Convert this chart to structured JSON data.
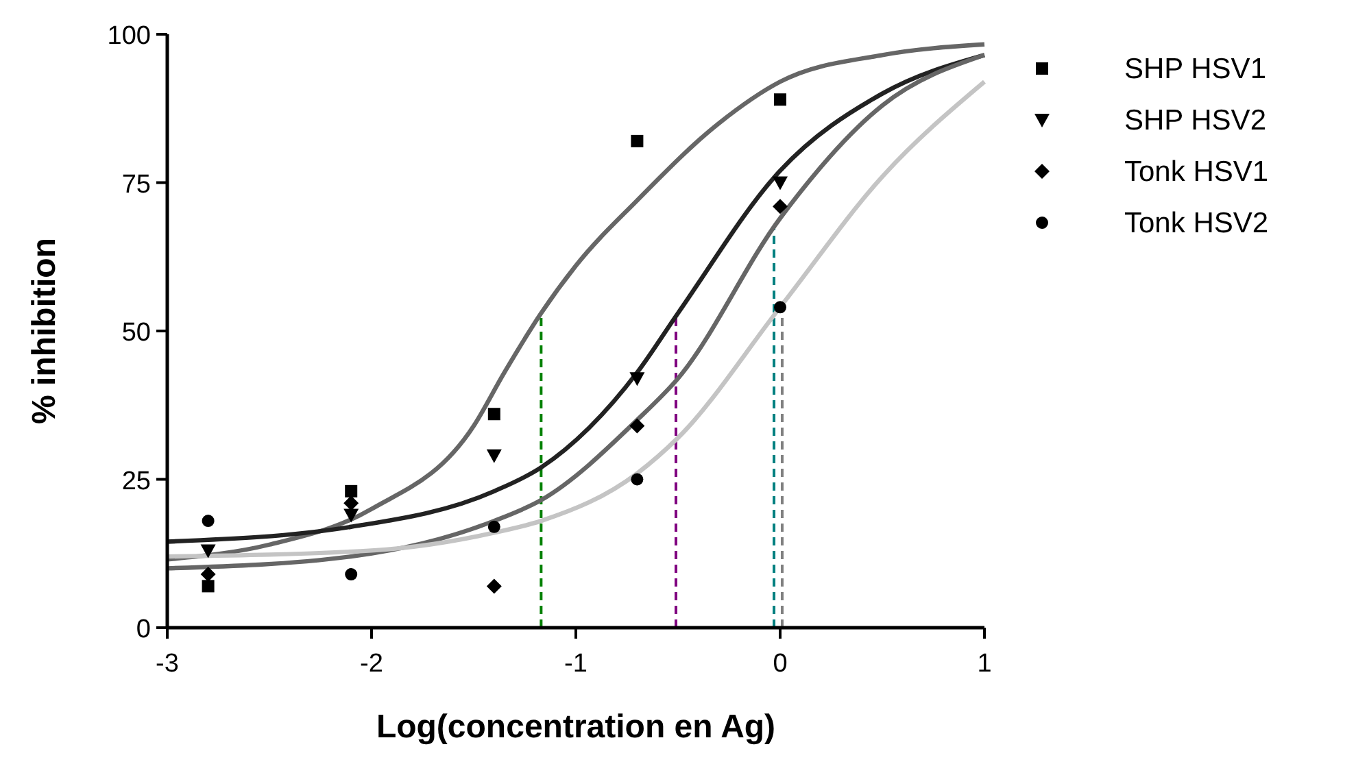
{
  "chart_data": {
    "type": "scatter",
    "xlabel": "Log(concentration en Ag)",
    "ylabel": "% inhibition",
    "xlim": [
      -3,
      1
    ],
    "ylim": [
      0,
      100
    ],
    "xticks": [
      -3,
      -2,
      -1,
      0,
      1
    ],
    "yticks": [
      0,
      25,
      50,
      75,
      100
    ],
    "grid": false,
    "legend": "right",
    "series": [
      {
        "name": "SHP HSV1",
        "marker": "square",
        "color": "#000000",
        "x": [
          -2.8,
          -2.1,
          -1.4,
          -0.7,
          0
        ],
        "values": [
          7,
          23,
          36,
          82,
          89
        ]
      },
      {
        "name": "SHP HSV2",
        "marker": "triangle",
        "color": "#000000",
        "x": [
          -2.8,
          -2.1,
          -1.4,
          -0.7,
          0
        ],
        "values": [
          13,
          19,
          29,
          42,
          75
        ]
      },
      {
        "name": "Tonk HSV1",
        "marker": "diamond",
        "color": "#000000",
        "x": [
          -2.8,
          -2.1,
          -1.4,
          -0.7,
          0
        ],
        "values": [
          9,
          21,
          7,
          34,
          71
        ]
      },
      {
        "name": "Tonk HSV2",
        "marker": "circle",
        "color": "#000000",
        "x": [
          -2.8,
          -2.1,
          -1.4,
          -0.7,
          0
        ],
        "values": [
          18,
          9,
          17,
          25,
          54
        ]
      },
      {
        "type": "line",
        "color": "#666666",
        "x": [
          -3,
          -2.5,
          -2,
          -1.5,
          -1.35,
          -1.17,
          -1,
          -0.7,
          -0.3,
          0,
          0.5,
          1
        ],
        "values": [
          11.5,
          14,
          20,
          34,
          43,
          53,
          61,
          72,
          85,
          92,
          96.5,
          98.3
        ]
      },
      {
        "type": "line",
        "color": "#222222",
        "x": [
          -3,
          -2.1,
          -1.4,
          -1.17,
          -0.7,
          -0.5,
          0,
          0.5,
          1
        ],
        "values": [
          14.5,
          17,
          23,
          27,
          43,
          53,
          77,
          90,
          96.5
        ]
      },
      {
        "type": "line",
        "color": "#666666",
        "x": [
          -3,
          -2.1,
          -1.4,
          -1.17,
          -0.7,
          -0.5,
          0,
          0.5,
          1
        ],
        "values": [
          10,
          12,
          18,
          21.5,
          35,
          42,
          69,
          88,
          96.5
        ]
      },
      {
        "type": "line",
        "color": "#c4c4c4",
        "x": [
          -3,
          -2,
          -1.4,
          -1.17,
          -0.7,
          -0.5,
          0,
          0.5,
          1
        ],
        "values": [
          12,
          13,
          16,
          18,
          26,
          32,
          54,
          76,
          92
        ]
      }
    ],
    "ref_lines": [
      {
        "axis": "x",
        "value": -1.17,
        "color": "#008000",
        "line_style": "dashed"
      },
      {
        "axis": "x",
        "value": -0.51,
        "color": "#800080",
        "line_style": "dashed"
      },
      {
        "axis": "x",
        "value": -0.03,
        "color": "#008080",
        "line_style": "dashed"
      },
      {
        "axis": "x",
        "value": 0.01,
        "color": "#808080",
        "line_style": "dashed"
      }
    ]
  }
}
